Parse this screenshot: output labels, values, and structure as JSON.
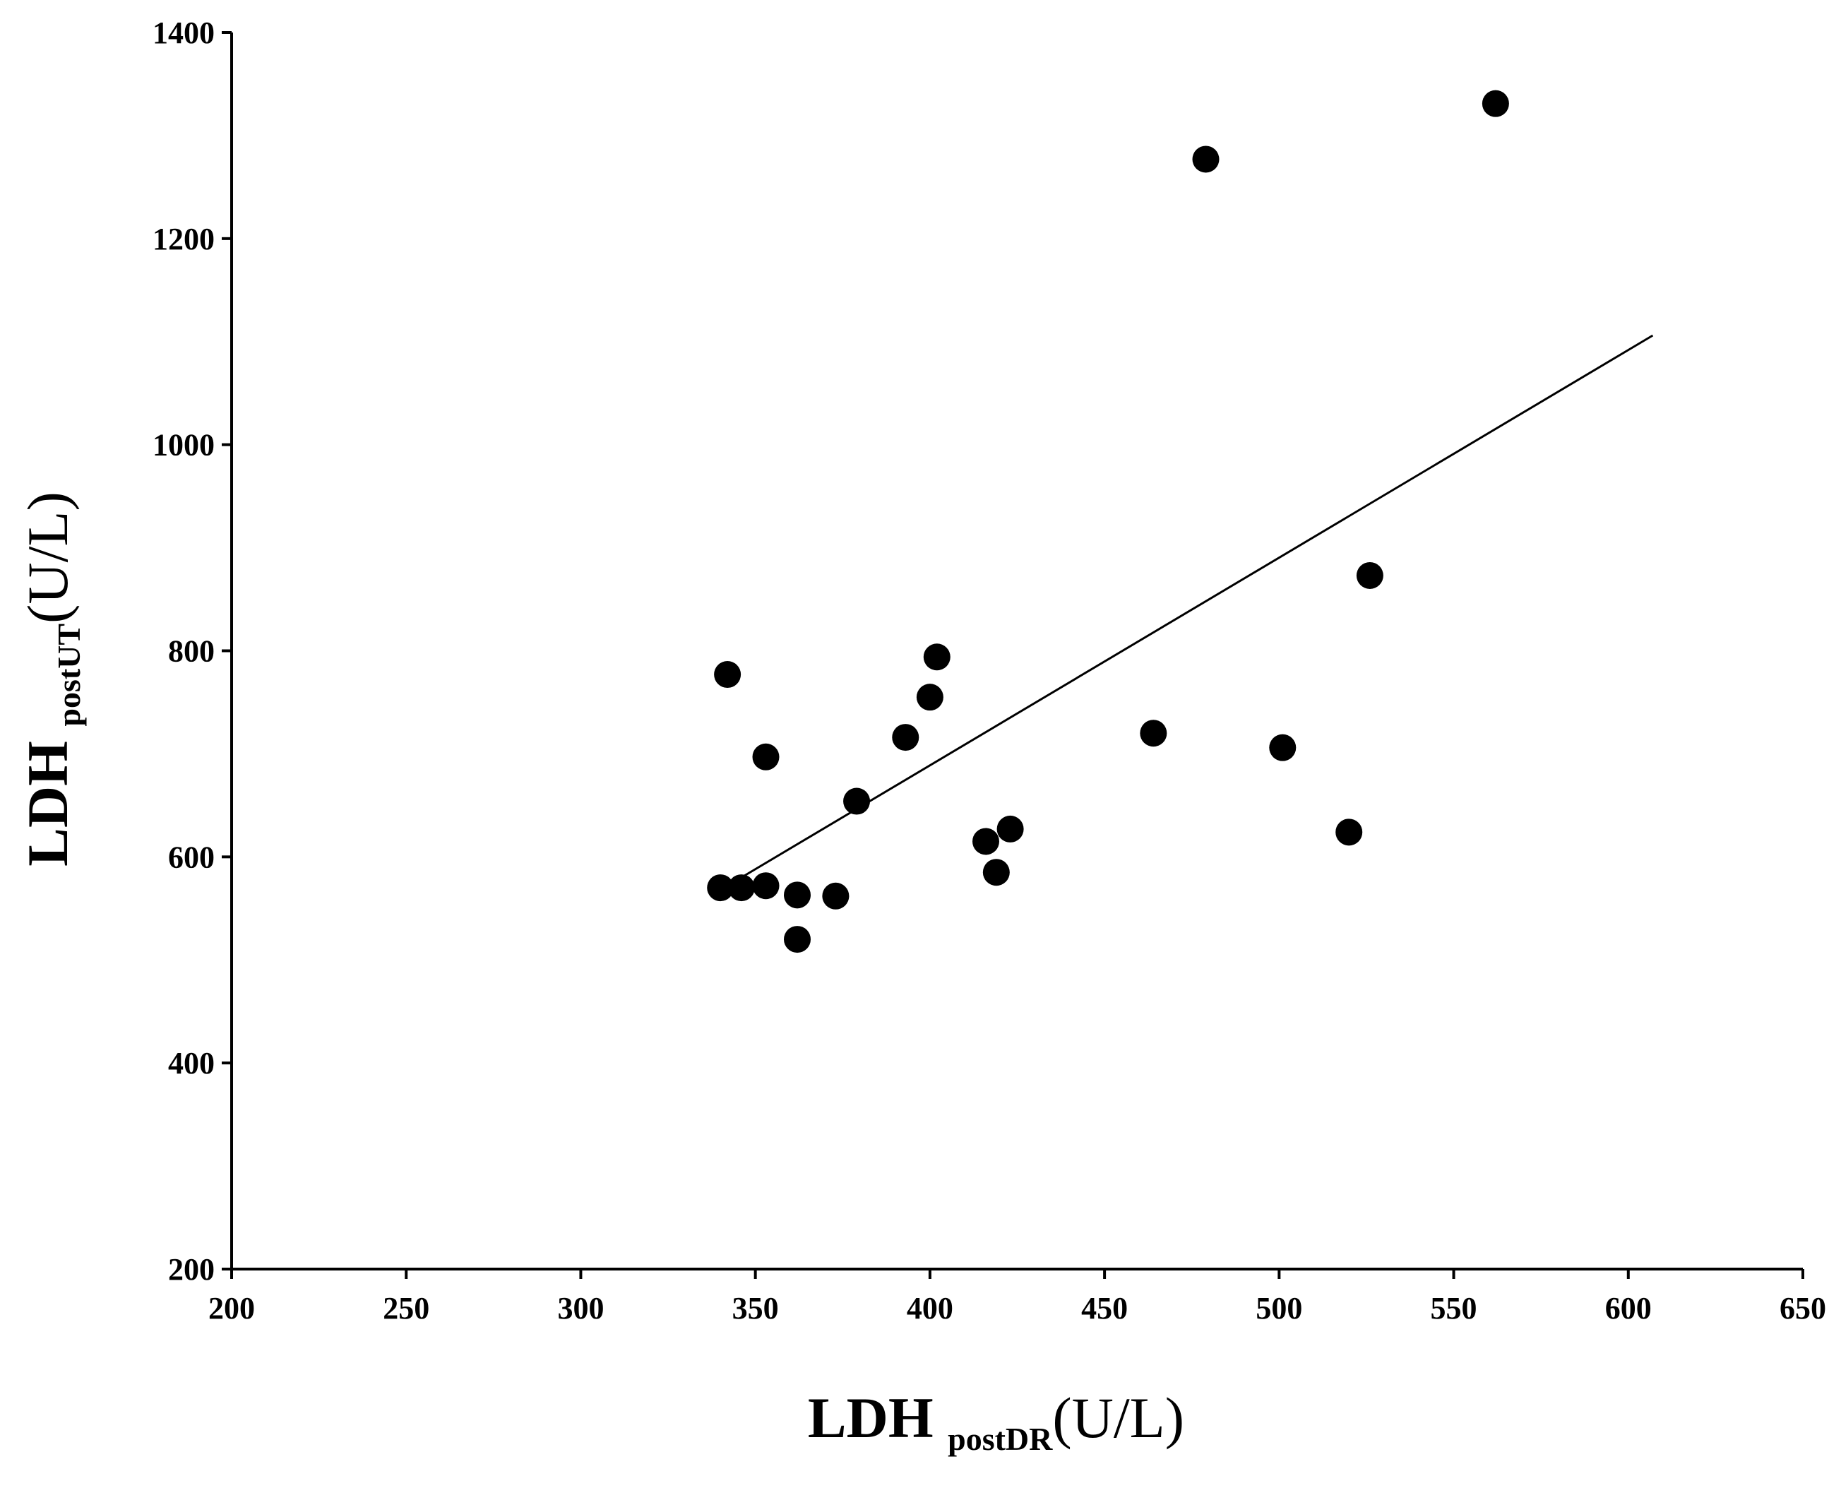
{
  "chart_data": {
    "type": "scatter",
    "title": "",
    "xlabel": {
      "main": "LDH ",
      "sub": "postDR",
      "unit": "(U/L)"
    },
    "ylabel": {
      "main": "LDH ",
      "sub": "postUT",
      "unit": "(U/L)"
    },
    "xlim": [
      200,
      650
    ],
    "ylim": [
      200,
      1400
    ],
    "x_ticks": [
      200,
      250,
      300,
      350,
      400,
      450,
      500,
      550,
      600,
      650
    ],
    "y_ticks": [
      200,
      400,
      600,
      800,
      1000,
      1200,
      1400
    ],
    "x_tick_labels": [
      "200",
      "250",
      "300",
      "350",
      "400",
      "450",
      "500",
      "550",
      "600",
      "650"
    ],
    "y_tick_labels": [
      "200",
      "400",
      "600",
      "800",
      "1000",
      "1200",
      "1400"
    ],
    "grid": false,
    "legend": "none",
    "marker_color": "#000000",
    "points": [
      {
        "x": 340,
        "y": 570
      },
      {
        "x": 342,
        "y": 777
      },
      {
        "x": 346,
        "y": 570
      },
      {
        "x": 353,
        "y": 697
      },
      {
        "x": 353,
        "y": 572
      },
      {
        "x": 362,
        "y": 563
      },
      {
        "x": 362,
        "y": 520
      },
      {
        "x": 373,
        "y": 562
      },
      {
        "x": 379,
        "y": 654
      },
      {
        "x": 393,
        "y": 716
      },
      {
        "x": 400,
        "y": 755
      },
      {
        "x": 402,
        "y": 794
      },
      {
        "x": 416,
        "y": 615
      },
      {
        "x": 419,
        "y": 585
      },
      {
        "x": 423,
        "y": 627
      },
      {
        "x": 464,
        "y": 720
      },
      {
        "x": 479,
        "y": 1277
      },
      {
        "x": 501,
        "y": 706
      },
      {
        "x": 520,
        "y": 624
      },
      {
        "x": 526,
        "y": 873
      },
      {
        "x": 562,
        "y": 1331
      }
    ],
    "trendline": {
      "x": [
        346,
        607
      ],
      "y": [
        580,
        1106
      ]
    }
  }
}
